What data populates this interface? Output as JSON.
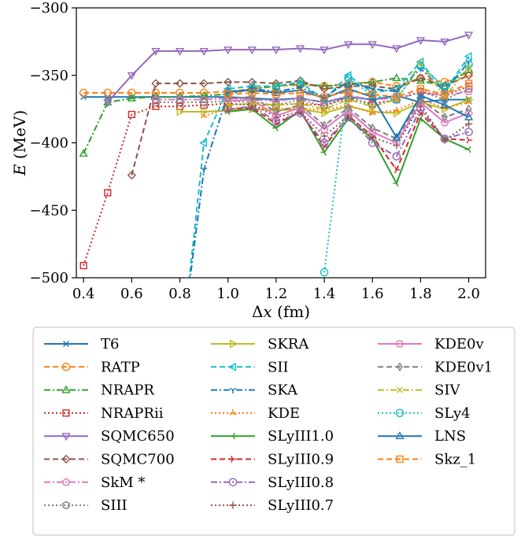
{
  "chart_data": {
    "type": "line",
    "xlabel_parts": [
      "Δ",
      "x",
      " (fm)"
    ],
    "ylabel_parts": [
      "E",
      " (MeV)"
    ],
    "xlim": [
      0.37,
      2.07
    ],
    "ylim": [
      -500,
      -300
    ],
    "xticks": [
      0.4,
      0.6,
      0.8,
      1.0,
      1.2,
      1.4,
      1.6,
      1.8,
      2.0
    ],
    "xtick_labels": [
      "0.4",
      "0.6",
      "0.8",
      "1.0",
      "1.2",
      "1.4",
      "1.6",
      "1.8",
      "2.0"
    ],
    "yticks": [
      -500,
      -450,
      -400,
      -350,
      -300
    ],
    "ytick_labels": [
      "−500",
      "−450",
      "−400",
      "−350",
      "−300"
    ],
    "grid": false,
    "legend_placement": "below",
    "x": [
      0.4,
      0.5,
      0.6,
      0.7,
      0.8,
      0.9,
      1.0,
      1.1,
      1.2,
      1.3,
      1.4,
      1.5,
      1.6,
      1.7,
      1.8,
      1.9,
      2.0
    ],
    "series": [
      {
        "name": "T6",
        "color": "#1f77b4",
        "dash": "solid",
        "marker": "x",
        "values": [
          -366,
          -366,
          -366,
          -366,
          -366,
          -366,
          -366,
          -367,
          -368,
          -367,
          -370,
          -366,
          -368,
          -365,
          -370,
          -368,
          -368
        ]
      },
      {
        "name": "RATP",
        "color": "#ff7f0e",
        "dash": "dashed",
        "marker": "circle",
        "values": [
          -363,
          -363,
          -363,
          -363,
          -363,
          -363,
          -362,
          -360,
          -358,
          -357,
          -358,
          -356,
          -355,
          -358,
          -352,
          -355,
          -348
        ]
      },
      {
        "name": "NRAPR",
        "color": "#2ca02c",
        "dash": "dashdot",
        "marker": "triangle-up",
        "values": [
          -408,
          -370,
          -367,
          -366,
          -366,
          -365,
          -364,
          -360,
          -358,
          -356,
          -358,
          -357,
          -355,
          -352,
          -354,
          -358,
          -346
        ]
      },
      {
        "name": "NRAPRii",
        "color": "#d62728",
        "dash": "dotted",
        "marker": "square",
        "values": [
          -491,
          -437,
          -379,
          -373,
          -373,
          -372,
          -371,
          -372,
          -372,
          -371,
          -372,
          -367,
          -371,
          -368,
          -362,
          -365,
          -358
        ]
      },
      {
        "name": "SQMC650",
        "color": "#9467bd",
        "dash": "solid",
        "marker": "triangle-down",
        "values": [
          null,
          -370,
          -350,
          -332,
          -332,
          -332,
          -331,
          -331,
          -331,
          -330,
          -331,
          -327,
          -327,
          -330,
          -324,
          -325,
          -320
        ]
      },
      {
        "name": "SQMC700",
        "color": "#8c564b",
        "dash": "dashed",
        "marker": "diamond",
        "values": [
          null,
          null,
          -424,
          -356,
          -356,
          -356,
          -355,
          -355,
          -356,
          -354,
          -360,
          -358,
          -358,
          -360,
          -352,
          -358,
          -350
        ]
      },
      {
        "name": "SkM *",
        "color": "#e377c2",
        "dash": "dashdot",
        "marker": "pentagon",
        "values": [
          null,
          null,
          null,
          -368,
          -368,
          -368,
          -367,
          -368,
          -369,
          -367,
          -370,
          -365,
          -368,
          -367,
          -363,
          -365,
          -362
        ]
      },
      {
        "name": "SIII",
        "color": "#7f7f7f",
        "dash": "dotted",
        "marker": "hexagon",
        "values": [
          null,
          null,
          null,
          -370,
          -370,
          -370,
          -369,
          -370,
          -372,
          -368,
          -373,
          -366,
          -372,
          -368,
          -362,
          -368,
          -360
        ]
      },
      {
        "name": "SKRA",
        "color": "#bcbd22",
        "dash": "solid",
        "marker": "triangle-right",
        "values": [
          null,
          null,
          null,
          null,
          -377,
          -377,
          -376,
          -375,
          -376,
          -375,
          -378,
          -373,
          -377,
          -378,
          -370,
          -375,
          -368
        ]
      },
      {
        "name": "SII",
        "color": "#17becf",
        "dash": "dashed",
        "marker": "triangle-left",
        "values": [
          null,
          null,
          null,
          null,
          -566,
          -400,
          -360,
          -358,
          -358,
          -355,
          -368,
          -350,
          -363,
          -360,
          -340,
          -362,
          -336
        ]
      },
      {
        "name": "SKA",
        "color": "#1f77b4",
        "dash": "dashdot",
        "marker": "tri-down",
        "values": [
          null,
          null,
          null,
          null,
          -560,
          -420,
          -363,
          -360,
          -362,
          -359,
          -366,
          -355,
          -360,
          -362,
          -345,
          -362,
          -340
        ]
      },
      {
        "name": "KDE",
        "color": "#ff7f0e",
        "dash": "dotted",
        "marker": "tri-up",
        "values": [
          null,
          null,
          null,
          null,
          null,
          -380,
          -375,
          -374,
          -375,
          -374,
          -376,
          -372,
          -378,
          -376,
          -368,
          -374,
          -370
        ]
      },
      {
        "name": "SLyIII1.0",
        "color": "#2ca02c",
        "dash": "solid",
        "marker": "tri-left",
        "values": [
          null,
          null,
          null,
          null,
          null,
          null,
          -377,
          -375,
          -389,
          -376,
          -407,
          -382,
          -397,
          -430,
          -382,
          -397,
          -405
        ]
      },
      {
        "name": "SLyIII0.9",
        "color": "#d62728",
        "dash": "dashed",
        "marker": "tri-right",
        "values": [
          null,
          null,
          null,
          null,
          null,
          null,
          -375,
          -374,
          -386,
          -377,
          -403,
          -380,
          -395,
          -420,
          -378,
          -397,
          -398
        ]
      },
      {
        "name": "SLyIII0.8",
        "color": "#9467bd",
        "dash": "dashdot",
        "marker": "circle",
        "values": [
          null,
          null,
          null,
          null,
          null,
          null,
          -375,
          -373,
          -384,
          -378,
          -400,
          -381,
          -400,
          -410,
          -375,
          -397,
          -392
        ]
      },
      {
        "name": "SLyIII0.7",
        "color": "#8c564b",
        "dash": "dotted",
        "marker": "plus",
        "values": [
          null,
          null,
          null,
          null,
          null,
          null,
          -372,
          -371,
          -381,
          -377,
          -395,
          -380,
          -396,
          -402,
          -372,
          -398,
          -386
        ]
      },
      {
        "name": "KDE0v",
        "color": "#e377c2",
        "dash": "solid",
        "marker": "hexagon2",
        "values": [
          null,
          null,
          null,
          null,
          null,
          null,
          -369,
          -368,
          -380,
          -374,
          -390,
          -376,
          -392,
          -400,
          -370,
          -385,
          -378
        ]
      },
      {
        "name": "KDE0v1",
        "color": "#7f7f7f",
        "dash": "dashed",
        "marker": "thin-diamond",
        "values": [
          null,
          null,
          null,
          null,
          null,
          null,
          -367,
          -366,
          -377,
          -372,
          -387,
          -374,
          -389,
          -397,
          -368,
          -381,
          -375
        ]
      },
      {
        "name": "SIV",
        "color": "#bcbd22",
        "dash": "dashdot",
        "marker": "x",
        "values": [
          null,
          null,
          null,
          null,
          null,
          null,
          -372,
          -371,
          -372,
          -371,
          -375,
          -368,
          -373,
          -368,
          -341,
          -366,
          -344
        ]
      },
      {
        "name": "SLy4",
        "color": "#17becf",
        "dash": "dotted",
        "marker": "circle",
        "values": [
          null,
          null,
          null,
          null,
          null,
          null,
          null,
          null,
          null,
          null,
          -496,
          -352,
          -365,
          -368,
          -343,
          -358,
          -342
        ]
      },
      {
        "name": "LNS",
        "color": "#1f77b4",
        "dash": "solid",
        "marker": "triangle-up",
        "values": [
          null,
          null,
          null,
          null,
          null,
          null,
          -362,
          -361,
          -363,
          -361,
          -367,
          -360,
          -366,
          -396,
          -365,
          -372,
          -381
        ]
      },
      {
        "name": "Skz_1",
        "color": "#ff7f0e",
        "dash": "dashed",
        "marker": "square",
        "values": [
          null,
          null,
          null,
          null,
          null,
          null,
          -364,
          -363,
          -364,
          -363,
          -366,
          -362,
          -364,
          -366,
          -360,
          -364,
          -356
        ]
      }
    ]
  }
}
